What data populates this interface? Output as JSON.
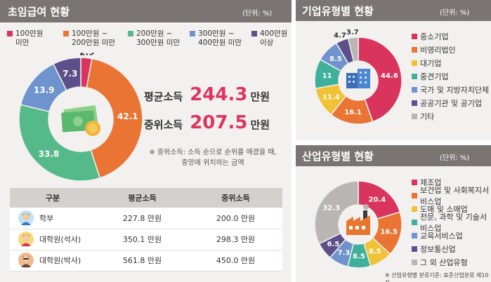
{
  "colors": {
    "pink": "#d9345d",
    "orange": "#ea7434",
    "green": "#55b989",
    "blue": "#6f93cc",
    "purple": "#5c4f8a",
    "yellow": "#f2c236",
    "teal": "#3fb09a",
    "gray": "#b9b5b3",
    "header": "#7a7573"
  },
  "salary": {
    "title": "초임급여 현황",
    "unit": "(단위: %)",
    "legend": [
      {
        "line1": "100만원",
        "line2": "미만",
        "color": "#d9345d"
      },
      {
        "line1": "100만원 ~",
        "line2": "200만원 미만",
        "color": "#ea7434"
      },
      {
        "line1": "200만원 ~",
        "line2": "300만원 미만",
        "color": "#55b989"
      },
      {
        "line1": "300만원 ~",
        "line2": "400만원 미만",
        "color": "#6f93cc"
      },
      {
        "line1": "400만원",
        "line2": "이상",
        "color": "#5c4f8a"
      }
    ],
    "avg_label": "평균소득",
    "avg_value": "244.3",
    "median_label": "중위소득",
    "median_value": "207.5",
    "money_unit": "만원",
    "note_line1": "※ 중위소득: 소득 순으로 순위를 매겼을 때,",
    "note_line2": "중앙에 위치하는 금액",
    "table": {
      "headers": [
        "구분",
        "평균소득",
        "중위소득"
      ],
      "rows": [
        {
          "degree": "학부",
          "avg": "227.8 만원",
          "median": "200.0 만원"
        },
        {
          "degree": "대학원(석사)",
          "avg": "350.1 만원",
          "median": "298.3 만원"
        },
        {
          "degree": "대학원(박사)",
          "avg": "561.8 만원",
          "median": "450.0 만원"
        }
      ]
    }
  },
  "company": {
    "title": "기업유형별 현황",
    "unit": "(단위: %)"
  },
  "industry": {
    "title": "산업유형별 현황",
    "unit": "(단위: %)",
    "footnote": "※ 산업유형별 분류기준: 표준산업분류 제10차"
  },
  "chart_data": [
    {
      "type": "pie",
      "title": "초임급여 현황",
      "categories": [
        "100만원 미만",
        "100만원 ~ 200만원 미만",
        "200만원 ~ 300만원 미만",
        "300만원 ~ 400만원 미만",
        "400만원 이상"
      ],
      "values": [
        2.9,
        42.1,
        33.8,
        13.9,
        7.3
      ],
      "colors": [
        "#d9345d",
        "#ea7434",
        "#55b989",
        "#6f93cc",
        "#5c4f8a"
      ]
    },
    {
      "type": "pie",
      "title": "기업유형별 현황",
      "categories": [
        "중소기업",
        "비영리법인",
        "대기업",
        "중견기업",
        "국가 및 지방자치단체",
        "공공기관 및 공기업",
        "기타"
      ],
      "values": [
        44.6,
        16.1,
        11.4,
        11.0,
        8.5,
        4.7,
        3.7
      ],
      "colors": [
        "#d9345d",
        "#ea7434",
        "#f2c236",
        "#3fb09a",
        "#6f93cc",
        "#5c4f8a",
        "#b9b5b3"
      ]
    },
    {
      "type": "pie",
      "title": "산업유형별 현황",
      "categories": [
        "제조업",
        "보건업 및 사회복지서비스업",
        "도매 및 소매업",
        "전문, 과학 및 기술서비스업",
        "교육서비스업",
        "정보통신업",
        "그 외 산업유형"
      ],
      "values": [
        20.4,
        16.5,
        8.5,
        8.5,
        7.3,
        6.5,
        32.3
      ],
      "colors": [
        "#d9345d",
        "#ea7434",
        "#f2c236",
        "#3fb09a",
        "#6f93cc",
        "#5c4f8a",
        "#b9b5b3"
      ]
    }
  ]
}
